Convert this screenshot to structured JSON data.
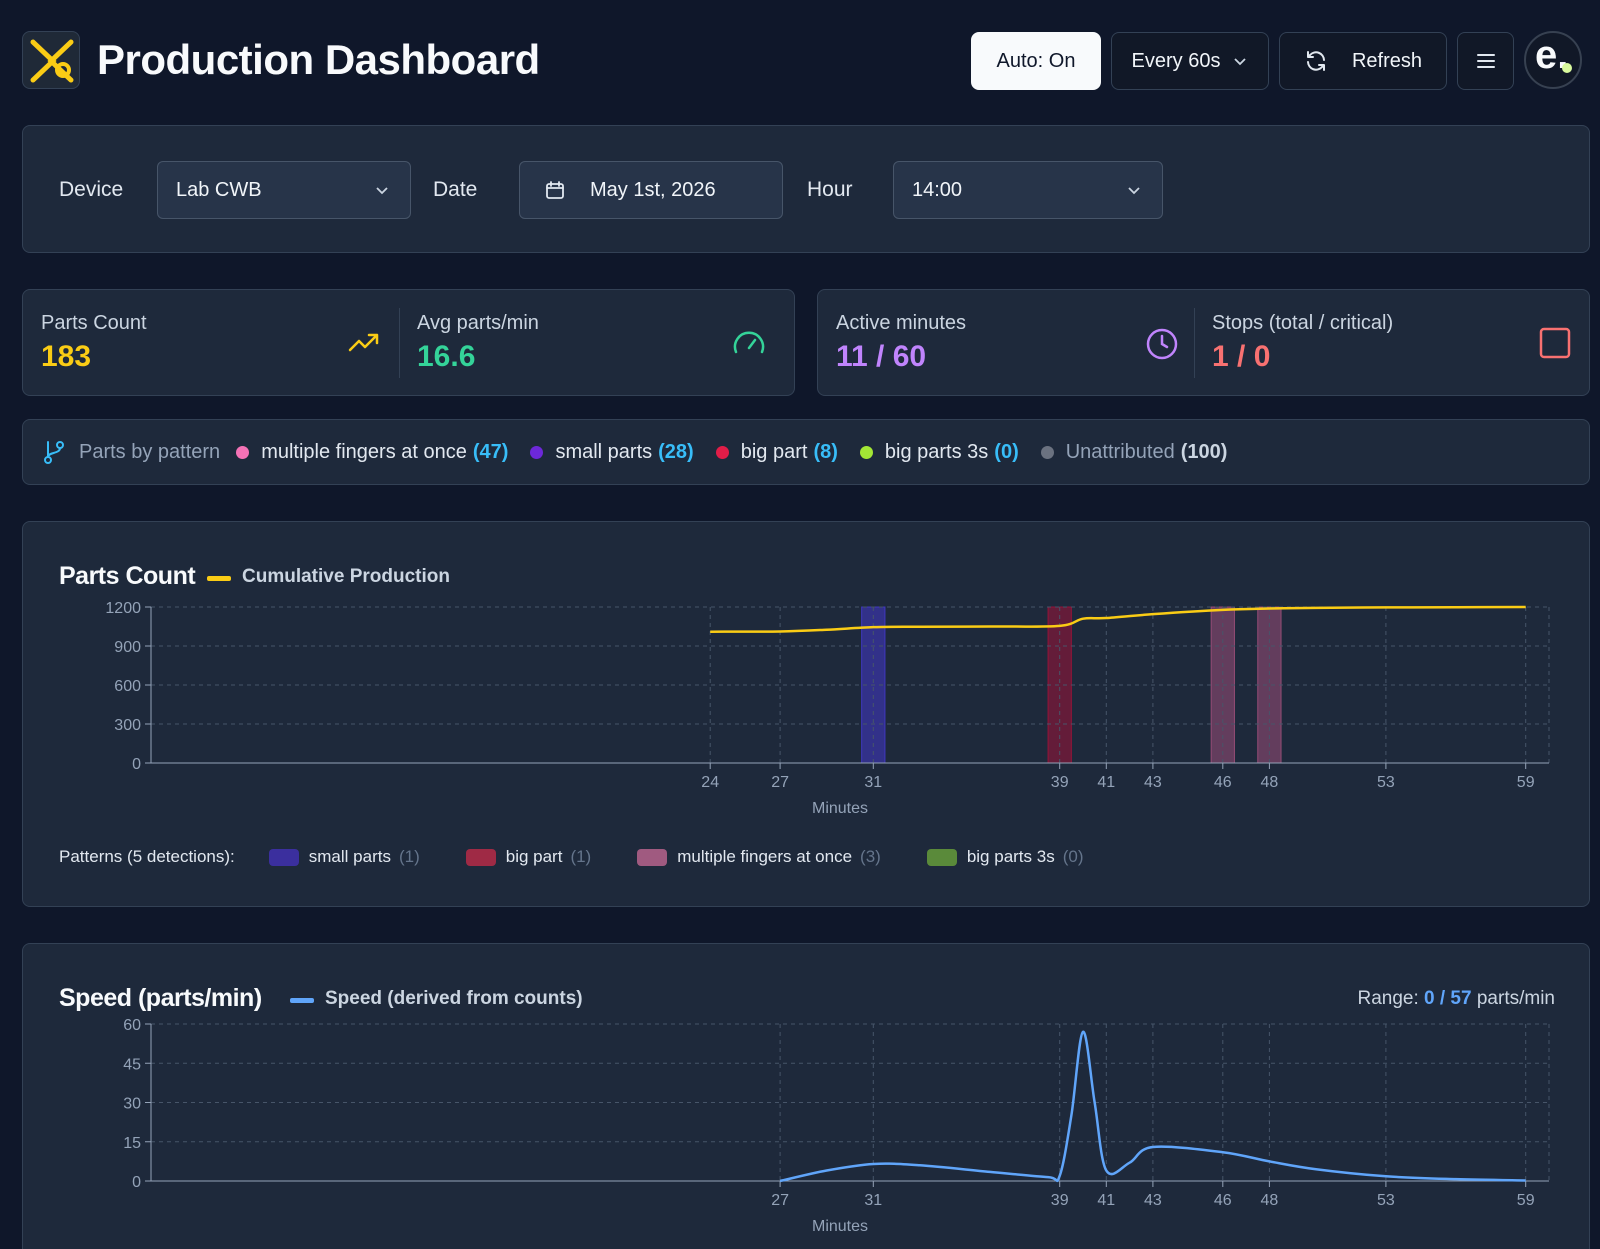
{
  "header": {
    "title": "Production Dashboard",
    "auto_label": "Auto: On",
    "interval_label": "Every 60s",
    "refresh_label": "Refresh",
    "avatar_letter": "e."
  },
  "filters": {
    "device_label": "Device",
    "device_value": "Lab CWB",
    "date_label": "Date",
    "date_value": "May 1st, 2026",
    "hour_label": "Hour",
    "hour_value": "14:00"
  },
  "stats": {
    "parts_count": {
      "label": "Parts Count",
      "value": "183",
      "color": "#facc15"
    },
    "avg_parts": {
      "label": "Avg parts/min",
      "value": "16.6",
      "color": "#34d399"
    },
    "active_minutes": {
      "label": "Active minutes",
      "value": "11 / 60",
      "color": "#c084fc"
    },
    "stops": {
      "label": "Stops (total / critical)",
      "value": "1 / 0",
      "color": "#f87171"
    }
  },
  "patterns": {
    "heading": "Parts by pattern",
    "items": [
      {
        "name": "multiple fingers at once",
        "count": "(47)",
        "color": "#f472b6"
      },
      {
        "name": "small parts",
        "count": "(28)",
        "color": "#6d28d9"
      },
      {
        "name": "big part",
        "count": "(8)",
        "color": "#e11d48"
      },
      {
        "name": "big parts 3s",
        "count": "(0)",
        "color": "#a3e635"
      },
      {
        "name": "Unattributed",
        "count": "(100)",
        "color": "#6b7280"
      }
    ]
  },
  "chart_data": [
    {
      "type": "line",
      "title": "Parts Count",
      "series": [
        {
          "name": "Cumulative Production",
          "color": "#facc15",
          "x": [
            24,
            27,
            29,
            31,
            33,
            36,
            39,
            40,
            41,
            43,
            46,
            48,
            50,
            53,
            56,
            59
          ],
          "values": [
            1010,
            1012,
            1025,
            1045,
            1048,
            1050,
            1055,
            1110,
            1115,
            1145,
            1178,
            1188,
            1193,
            1197,
            1198,
            1200
          ]
        }
      ],
      "xlabel": "Minutes",
      "ylabel": "",
      "xlim": [
        0,
        60
      ],
      "ylim": [
        0,
        1200
      ],
      "yticks": [
        0,
        300,
        600,
        900,
        1200
      ],
      "xticks": [
        24,
        27,
        31,
        39,
        41,
        43,
        46,
        48,
        53,
        59
      ],
      "grid": true,
      "pattern_bands": [
        {
          "pattern": "small parts",
          "start": 30.5,
          "end": 31.5,
          "color": "#4338ca"
        },
        {
          "pattern": "big part",
          "start": 38.5,
          "end": 39.5,
          "color": "#9f1239"
        },
        {
          "pattern": "multiple fingers at once",
          "start": 45.5,
          "end": 46.5,
          "color": "#9d4f7a"
        },
        {
          "pattern": "multiple fingers at once",
          "start": 47.5,
          "end": 48.5,
          "color": "#9d4f7a"
        }
      ],
      "pattern_legend": {
        "title": "Patterns (5 detections):",
        "items": [
          {
            "name": "small parts",
            "count": "(1)",
            "color": "#3b2f9e"
          },
          {
            "name": "big part",
            "count": "(1)",
            "color": "#9f2a45"
          },
          {
            "name": "multiple fingers at once",
            "count": "(3)",
            "color": "#a05a80"
          },
          {
            "name": "big parts 3s",
            "count": "(0)",
            "color": "#5a8a3a"
          }
        ]
      }
    },
    {
      "type": "line",
      "title": "Speed (parts/min)",
      "series": [
        {
          "name": "Speed (derived from counts)",
          "color": "#60a5fa",
          "x": [
            27,
            29,
            31,
            33,
            36,
            38.5,
            39,
            39.5,
            40,
            40.5,
            41,
            42,
            43,
            46,
            48,
            50,
            53,
            56,
            59
          ],
          "values": [
            0,
            4,
            6.5,
            6,
            3.5,
            1.5,
            2,
            25,
            57,
            30,
            4,
            7,
            13,
            11,
            7.5,
            4.5,
            1.8,
            0.7,
            0.2
          ]
        }
      ],
      "xlabel": "Minutes",
      "ylabel": "",
      "xlim": [
        0,
        60
      ],
      "ylim": [
        0,
        60
      ],
      "yticks": [
        0,
        15,
        30,
        45,
        60
      ],
      "xticks": [
        27,
        31,
        39,
        41,
        43,
        46,
        48,
        53,
        59
      ],
      "grid": true,
      "range": {
        "label": "Range:",
        "value": "0 / 57",
        "unit": "parts/min"
      }
    }
  ]
}
